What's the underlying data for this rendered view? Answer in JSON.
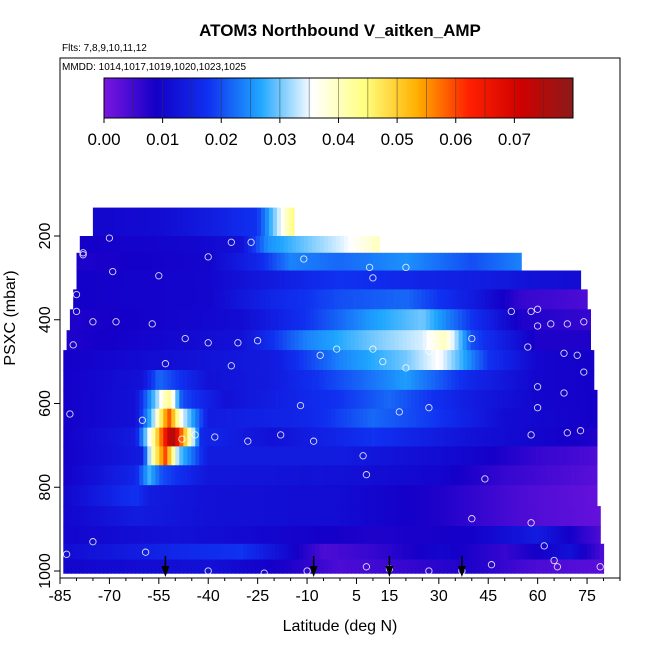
{
  "chart_data": {
    "type": "heatmap",
    "title": "ATOM3 Northbound V_aitken_AMP",
    "subtitle_flights": "Flts: 7,8,9,10,11,12",
    "subtitle_dates": "MMDD: 1014,1017,1019,1020,1023,1025",
    "xlabel": "Latitude (deg N)",
    "ylabel": "PSXC (mbar)",
    "xlim": [
      -85,
      85
    ],
    "ylim": [
      1000,
      50
    ],
    "x_ticks": [
      -85,
      -70,
      -55,
      -40,
      -25,
      -10,
      5,
      15,
      30,
      45,
      60,
      75
    ],
    "y_ticks": [
      200,
      400,
      600,
      800,
      1000
    ],
    "colorbar": {
      "range": [
        0,
        0.08
      ],
      "ticks": [
        0.0,
        0.01,
        0.02,
        0.03,
        0.04,
        0.05,
        0.06,
        0.07
      ],
      "tick_labels": [
        "0.00",
        "0.01",
        "0.02",
        "0.03",
        "0.04",
        "0.05",
        "0.06",
        "0.07"
      ],
      "colors": [
        "#7a16e0",
        "#1400c8",
        "#1030f0",
        "#1fa6ff",
        "#ffffff",
        "#ffff80",
        "#ffb000",
        "#ff2000",
        "#d00000",
        "#8b1a1a"
      ]
    },
    "grid": false,
    "layers": [
      {
        "p": 180,
        "x0": -75,
        "x1": -14,
        "pts": [
          [
            -75,
            0.01
          ],
          [
            -55,
            0.011
          ],
          [
            -40,
            0.014
          ],
          [
            -25,
            0.018
          ],
          [
            -18,
            0.035
          ],
          [
            -14,
            0.045
          ]
        ]
      },
      {
        "p": 220,
        "x0": -79,
        "x1": 12,
        "pts": [
          [
            -79,
            0.009
          ],
          [
            -45,
            0.01
          ],
          [
            -30,
            0.012
          ],
          [
            -22,
            0.025
          ],
          [
            -10,
            0.03
          ],
          [
            0,
            0.034
          ],
          [
            12,
            0.04
          ]
        ]
      },
      {
        "p": 260,
        "x0": -80,
        "x1": 55,
        "pts": [
          [
            -80,
            0.008
          ],
          [
            -40,
            0.01
          ],
          [
            -25,
            0.016
          ],
          [
            -15,
            0.024
          ],
          [
            0,
            0.022
          ],
          [
            20,
            0.025
          ],
          [
            40,
            0.02
          ],
          [
            55,
            0.024
          ]
        ]
      },
      {
        "p": 305,
        "x0": -80,
        "x1": 73,
        "pts": [
          [
            -80,
            0.009
          ],
          [
            -40,
            0.01
          ],
          [
            -20,
            0.014
          ],
          [
            0,
            0.018
          ],
          [
            20,
            0.016
          ],
          [
            45,
            0.014
          ],
          [
            60,
            0.012
          ],
          [
            73,
            0.011
          ]
        ]
      },
      {
        "p": 350,
        "x0": -81,
        "x1": 75,
        "pts": [
          [
            -81,
            0.009
          ],
          [
            -40,
            0.01
          ],
          [
            -20,
            0.016
          ],
          [
            0,
            0.02
          ],
          [
            20,
            0.022
          ],
          [
            40,
            0.014
          ],
          [
            55,
            0.006
          ],
          [
            75,
            0.004
          ]
        ]
      },
      {
        "p": 400,
        "x0": -82,
        "x1": 76,
        "pts": [
          [
            -82,
            0.008
          ],
          [
            -30,
            0.011
          ],
          [
            -10,
            0.018
          ],
          [
            10,
            0.026
          ],
          [
            25,
            0.03
          ],
          [
            40,
            0.018
          ],
          [
            55,
            0.008
          ],
          [
            76,
            0.006
          ]
        ]
      },
      {
        "p": 450,
        "x0": -83,
        "x1": 76,
        "pts": [
          [
            -83,
            0.008
          ],
          [
            -30,
            0.012
          ],
          [
            -10,
            0.024
          ],
          [
            10,
            0.03
          ],
          [
            25,
            0.034
          ],
          [
            32,
            0.04
          ],
          [
            40,
            0.02
          ],
          [
            60,
            0.008
          ],
          [
            76,
            0.008
          ]
        ]
      },
      {
        "p": 495,
        "x0": -84,
        "x1": 77,
        "pts": [
          [
            -84,
            0.009
          ],
          [
            -20,
            0.014
          ],
          [
            0,
            0.024
          ],
          [
            20,
            0.03
          ],
          [
            30,
            0.036
          ],
          [
            45,
            0.018
          ],
          [
            60,
            0.01
          ],
          [
            77,
            0.009
          ]
        ]
      },
      {
        "p": 545,
        "x0": -84,
        "x1": 77,
        "pts": [
          [
            -84,
            0.009
          ],
          [
            -60,
            0.012
          ],
          [
            -55,
            0.022
          ],
          [
            -40,
            0.012
          ],
          [
            -20,
            0.014
          ],
          [
            0,
            0.02
          ],
          [
            20,
            0.026
          ],
          [
            40,
            0.016
          ],
          [
            60,
            0.01
          ],
          [
            77,
            0.009
          ]
        ]
      },
      {
        "p": 590,
        "x0": -84,
        "x1": 78,
        "pts": [
          [
            -84,
            0.009
          ],
          [
            -62,
            0.012
          ],
          [
            -56,
            0.03
          ],
          [
            -52,
            0.044
          ],
          [
            -48,
            0.02
          ],
          [
            -35,
            0.012
          ],
          [
            0,
            0.018
          ],
          [
            15,
            0.022
          ],
          [
            40,
            0.014
          ],
          [
            60,
            0.01
          ],
          [
            78,
            0.009
          ]
        ]
      },
      {
        "p": 635,
        "x0": -84,
        "x1": 78,
        "pts": [
          [
            -84,
            0.009
          ],
          [
            -62,
            0.012
          ],
          [
            -57,
            0.03
          ],
          [
            -52,
            0.06
          ],
          [
            -48,
            0.035
          ],
          [
            -40,
            0.014
          ],
          [
            -10,
            0.016
          ],
          [
            10,
            0.022
          ],
          [
            30,
            0.018
          ],
          [
            50,
            0.011
          ],
          [
            78,
            0.009
          ]
        ]
      },
      {
        "p": 680,
        "x0": -84,
        "x1": 78,
        "pts": [
          [
            -84,
            0.009
          ],
          [
            -62,
            0.014
          ],
          [
            -57,
            0.04
          ],
          [
            -51,
            0.078
          ],
          [
            -47,
            0.05
          ],
          [
            -42,
            0.016
          ],
          [
            -20,
            0.012
          ],
          [
            10,
            0.018
          ],
          [
            40,
            0.012
          ],
          [
            78,
            0.008
          ]
        ]
      },
      {
        "p": 725,
        "x0": -84,
        "x1": 78,
        "pts": [
          [
            -84,
            0.009
          ],
          [
            -60,
            0.014
          ],
          [
            -57,
            0.04
          ],
          [
            -53,
            0.06
          ],
          [
            -49,
            0.03
          ],
          [
            -40,
            0.014
          ],
          [
            0,
            0.014
          ],
          [
            20,
            0.012
          ],
          [
            40,
            0.01
          ],
          [
            60,
            0.006
          ],
          [
            78,
            0.004
          ]
        ]
      },
      {
        "p": 770,
        "x0": -84,
        "x1": 78,
        "pts": [
          [
            -84,
            0.009
          ],
          [
            -62,
            0.016
          ],
          [
            -58,
            0.028
          ],
          [
            -54,
            0.02
          ],
          [
            -40,
            0.013
          ],
          [
            0,
            0.012
          ],
          [
            30,
            0.01
          ],
          [
            50,
            0.006
          ],
          [
            78,
            0.003
          ]
        ]
      },
      {
        "p": 820,
        "x0": -84,
        "x1": 78,
        "pts": [
          [
            -84,
            0.01
          ],
          [
            -62,
            0.018
          ],
          [
            -58,
            0.014
          ],
          [
            -40,
            0.012
          ],
          [
            0,
            0.011
          ],
          [
            30,
            0.008
          ],
          [
            55,
            0.004
          ],
          [
            78,
            0.002
          ]
        ]
      },
      {
        "p": 870,
        "x0": -84,
        "x1": 79,
        "pts": [
          [
            -84,
            0.01
          ],
          [
            -62,
            0.014
          ],
          [
            -40,
            0.012
          ],
          [
            0,
            0.011
          ],
          [
            30,
            0.008
          ],
          [
            55,
            0.004
          ],
          [
            79,
            0.002
          ]
        ]
      },
      {
        "p": 915,
        "x0": -84,
        "x1": 79,
        "pts": [
          [
            -84,
            0.01
          ],
          [
            -50,
            0.012
          ],
          [
            -20,
            0.01
          ],
          [
            10,
            0.008
          ],
          [
            40,
            0.009
          ],
          [
            60,
            0.014
          ],
          [
            79,
            0.004
          ]
        ]
      },
      {
        "p": 955,
        "x0": -84,
        "x1": 80,
        "pts": [
          [
            -84,
            0.011
          ],
          [
            -50,
            0.016
          ],
          [
            -30,
            0.018
          ],
          [
            -15,
            0.01
          ],
          [
            -5,
            0.004
          ],
          [
            10,
            0.006
          ],
          [
            30,
            0.01
          ],
          [
            50,
            0.006
          ],
          [
            70,
            0.012
          ],
          [
            80,
            0.004
          ]
        ]
      },
      {
        "p": 990,
        "x0": -84,
        "x1": 80,
        "pts": [
          [
            -84,
            0.01
          ],
          [
            -40,
            0.012
          ],
          [
            -15,
            0.008
          ],
          [
            0,
            0.004
          ],
          [
            20,
            0.006
          ],
          [
            40,
            0.008
          ],
          [
            60,
            0.004
          ],
          [
            80,
            0.003
          ]
        ]
      }
    ],
    "samples": [
      [
        -70,
        205
      ],
      [
        -78,
        240
      ],
      [
        -33,
        215
      ],
      [
        -27,
        215
      ],
      [
        -78,
        245
      ],
      [
        -40,
        250
      ],
      [
        -11,
        255
      ],
      [
        9,
        275
      ],
      [
        20,
        275
      ],
      [
        -69,
        285
      ],
      [
        -55,
        295
      ],
      [
        10,
        300
      ],
      [
        -80,
        340
      ],
      [
        -80,
        380
      ],
      [
        60,
        375
      ],
      [
        52,
        380
      ],
      [
        58,
        380
      ],
      [
        -75,
        405
      ],
      [
        -68,
        405
      ],
      [
        -57,
        410
      ],
      [
        64,
        410
      ],
      [
        60,
        415
      ],
      [
        69,
        410
      ],
      [
        74,
        405
      ],
      [
        -47,
        445
      ],
      [
        -40,
        455
      ],
      [
        -31,
        455
      ],
      [
        -25,
        450
      ],
      [
        -6,
        485
      ],
      [
        -1,
        470
      ],
      [
        -81,
        460
      ],
      [
        10,
        470
      ],
      [
        -53,
        505
      ],
      [
        13,
        500
      ],
      [
        40,
        445
      ],
      [
        57,
        465
      ],
      [
        27,
        475
      ],
      [
        68,
        480
      ],
      [
        72,
        485
      ],
      [
        20,
        515
      ],
      [
        -33,
        510
      ],
      [
        60,
        560
      ],
      [
        27,
        610
      ],
      [
        -12,
        605
      ],
      [
        -82,
        625
      ],
      [
        -60,
        640
      ],
      [
        -48,
        685
      ],
      [
        -44,
        675
      ],
      [
        -38,
        680
      ],
      [
        -28,
        690
      ],
      [
        -18,
        675
      ],
      [
        -8,
        690
      ],
      [
        7,
        725
      ],
      [
        18,
        620
      ],
      [
        60,
        610
      ],
      [
        68,
        575
      ],
      [
        74,
        525
      ],
      [
        73,
        665
      ],
      [
        58,
        675
      ],
      [
        69,
        670
      ],
      [
        44,
        780
      ],
      [
        8,
        770
      ],
      [
        -75,
        930
      ],
      [
        -83,
        960
      ],
      [
        -59,
        955
      ],
      [
        62,
        940
      ],
      [
        65,
        975
      ],
      [
        40,
        875
      ],
      [
        58,
        885
      ],
      [
        -40,
        1000
      ],
      [
        -23,
        1005
      ],
      [
        -10,
        1000
      ],
      [
        8,
        990
      ],
      [
        15,
        995
      ],
      [
        27,
        1000
      ],
      [
        37,
        1000
      ],
      [
        46,
        985
      ],
      [
        66,
        990
      ],
      [
        79,
        990
      ]
    ],
    "flight_arrows": [
      -53,
      -8,
      15,
      37
    ]
  }
}
